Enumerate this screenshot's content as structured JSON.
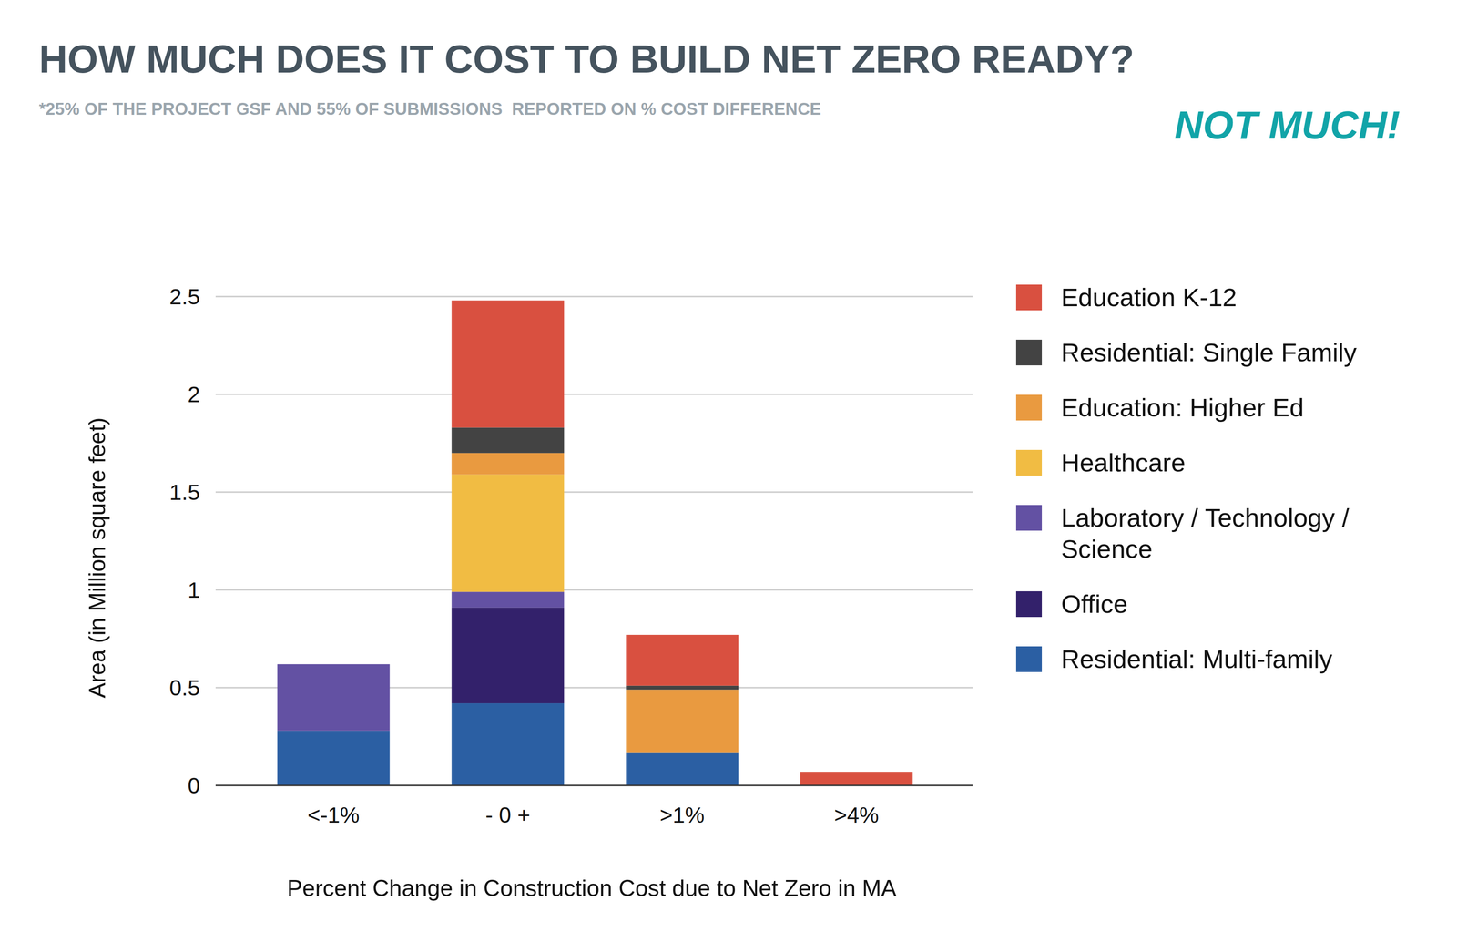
{
  "chart_data": {
    "type": "bar",
    "stacked": true,
    "title": "HOW MUCH DOES IT COST TO BUILD NET ZERO READY?",
    "subtitle": "*25% OF THE PROJECT GSF AND 55% OF SUBMISSIONS  REPORTED ON % COST DIFFERENCE",
    "annotation": "NOT MUCH!",
    "x_label": "Percent Change in Construction Cost due to Net Zero in MA",
    "y_label": "Area (in Million square feet)",
    "categories": [
      "<-1%",
      "- 0 +",
      ">1%",
      ">4%"
    ],
    "series": [
      {
        "name": "Residential: Multi-family",
        "color": "#2b5fa3",
        "values": [
          0.28,
          0.42,
          0.17,
          0
        ]
      },
      {
        "name": "Office",
        "color": "#33216b",
        "values": [
          0,
          0.49,
          0,
          0
        ]
      },
      {
        "name": "Laboratory / Technology / Science",
        "color": "#6351a3",
        "values": [
          0.34,
          0.08,
          0,
          0
        ]
      },
      {
        "name": "Healthcare",
        "color": "#f1bc43",
        "values": [
          0,
          0.6,
          0,
          0
        ]
      },
      {
        "name": "Education: Higher Ed",
        "color": "#e99a40",
        "values": [
          0,
          0.11,
          0.32,
          0
        ]
      },
      {
        "name": "Residential: Single Family",
        "color": "#434343",
        "values": [
          0,
          0.13,
          0.02,
          0
        ]
      },
      {
        "name": "Education K-12",
        "color": "#d95040",
        "values": [
          0,
          0.65,
          0.26,
          0.07
        ]
      }
    ],
    "ylim": [
      0,
      2.5
    ],
    "yticks": [
      0,
      0.5,
      1,
      1.5,
      2,
      2.5
    ],
    "grid": true,
    "legend": "right"
  }
}
